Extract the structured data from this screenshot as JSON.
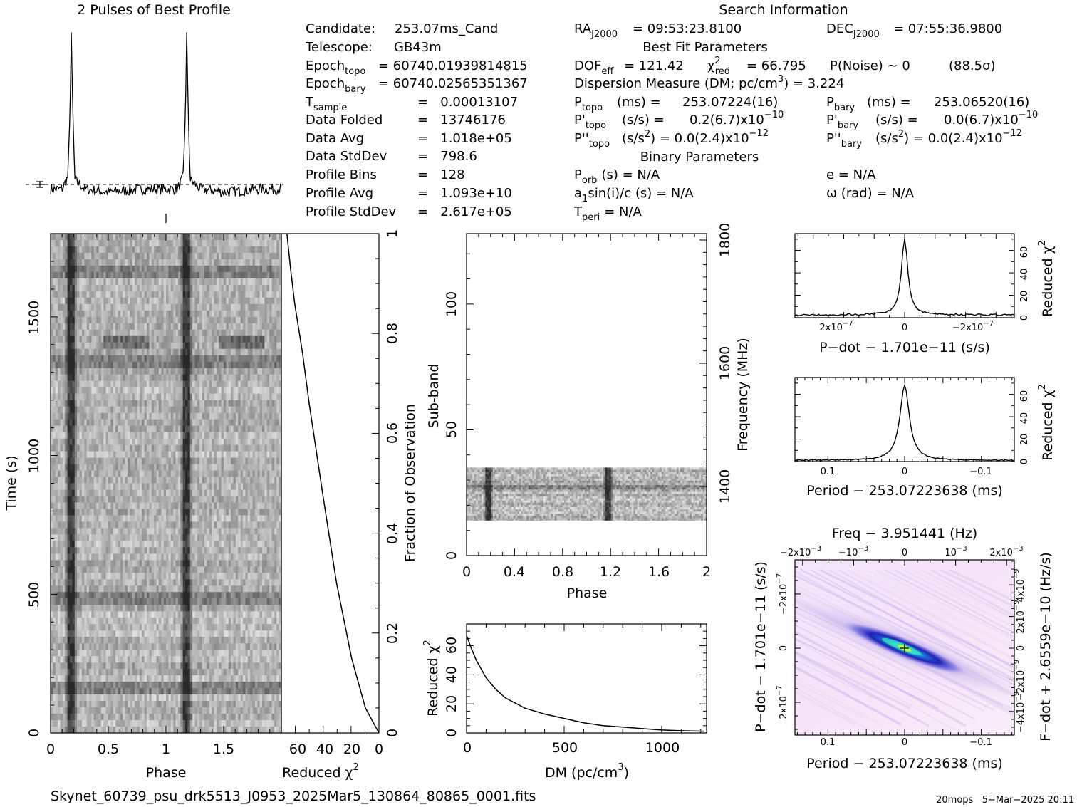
{
  "prof": {
    "title": "2 Pulses of Best Profile"
  },
  "search_title": "Search Information",
  "candidate": {
    "label": "Candidate:",
    "value": "253.07ms_Cand"
  },
  "telescope": {
    "label": "Telescope:",
    "value": "GB43m"
  },
  "epoch_topo": {
    "label": "Epoch",
    "sub": "topo",
    "value": "= 60740.01939814815"
  },
  "epoch_bary": {
    "label": "Epoch",
    "sub": "bary",
    "value": "= 60740.02565351367"
  },
  "left_rows": [
    {
      "label": "T",
      "sub": "sample",
      "value": "=   0.00013107"
    },
    {
      "label": "Data Folded",
      "value": "=   13746176"
    },
    {
      "label": "Data Avg",
      "value": "=   1.018e+05"
    },
    {
      "label": "Data StdDev",
      "value": "=   798.6"
    },
    {
      "label": "Profile Bins",
      "value": "=   128"
    },
    {
      "label": "Profile Avg",
      "value": "=   1.093e+10"
    },
    {
      "label": "Profile StdDev",
      "value": "=   2.617e+05"
    }
  ],
  "ra": {
    "label": "RA",
    "sub": "J2000",
    "value": "= 09:53:23.8100"
  },
  "dec": {
    "label": "DEC",
    "sub": "J2000",
    "value": "= 07:55:36.9800"
  },
  "best_fit_title": "Best Fit Parameters",
  "dof": {
    "label": "DOF",
    "sub": "eff",
    "value": "= 121.42"
  },
  "chi": {
    "sym": "χ",
    "sup": "2",
    "sub": "red",
    "value": "= 66.795"
  },
  "pnoise": {
    "text": "P(Noise) ~ 0",
    "sigma": "(88.5σ)"
  },
  "dm_line": {
    "text": "Dispersion Measure (DM; pc/cm",
    "sup": "3",
    "tail": ") = 3.224"
  },
  "ptopo": {
    "label": "P",
    "sub": "topo",
    "unit": "(ms) =",
    "value": "253.07224(16)"
  },
  "pbary": {
    "label": "P",
    "sub": "bary",
    "unit": "(ms) =",
    "value": "253.06520(16)"
  },
  "pdtopo": {
    "label": "P'",
    "sub": "topo",
    "unit": "(s/s) =",
    "value": "0.2(6.7)x10",
    "exp": "−10"
  },
  "pdbary": {
    "label": "P'",
    "sub": "bary",
    "unit": "(s/s) =",
    "value": "0.0(6.7)x10",
    "exp": "−10"
  },
  "pddtopo": {
    "label": "P''",
    "sub": "topo",
    "unit": "(s/s",
    "unit_sup": "2",
    "tail": ") = 0.0(2.4)x10",
    "exp": "−12"
  },
  "pddbary": {
    "label": "P''",
    "sub": "bary",
    "unit": "(s/s",
    "unit_sup": "2",
    "tail": ") = 0.0(2.4)x10",
    "exp": "−12"
  },
  "binary_title": "Binary Parameters",
  "porb": {
    "label": "P",
    "sub": "orb",
    "value": "(s) = N/A"
  },
  "asini": {
    "label": "a",
    "sub": "1",
    "value": "sin(i)/c (s) = N/A"
  },
  "tperi": {
    "label": "T",
    "sub": "peri",
    "value": "= N/A"
  },
  "ecc": {
    "text": "e = N/A"
  },
  "omega": {
    "text": "ω (rad) = N/A"
  },
  "tvp": {
    "xlabel": "Phase",
    "ylabel": "Time (s)",
    "xticks": [
      "0",
      "0.5",
      "1",
      "1.5"
    ],
    "yticks": [
      "0",
      "500",
      "1000",
      "1500"
    ]
  },
  "chivt": {
    "xlabel_main": "Reduced χ",
    "xlabel_sup": "2",
    "ylabel": "Fraction of Observation",
    "xticks": [
      "60",
      "40",
      "20",
      "0"
    ],
    "yticks": [
      "0",
      "0.2",
      "0.4",
      "0.6",
      "0.8",
      "1"
    ]
  },
  "sub": {
    "xlabel": "Phase",
    "ylabel": "Sub-band",
    "ylabel_right": "Frequency (MHz)",
    "xticks": [
      "0",
      "0.4",
      "0.8",
      "1.2",
      "1.6",
      "2"
    ],
    "yticks": [
      "0",
      "50",
      "100"
    ],
    "rticks": [
      "1400",
      "1600",
      "1800"
    ]
  },
  "dmp": {
    "xlabel_main": "DM (pc/cm",
    "xlabel_sup": "3",
    "xlabel_tail": ")",
    "ylabel_main": "Reduced χ",
    "ylabel_sup": "2",
    "xticks": [
      "0",
      "500",
      "1000"
    ],
    "yticks": [
      "0",
      "20",
      "40",
      "60"
    ]
  },
  "pdp": {
    "xlabel": "P−dot − 1.701e−11 (s/s)",
    "ylabel_main": "Reduced χ",
    "ylabel_sup": "2",
    "xticks": [
      "2x10",
      "0",
      "−2x10"
    ],
    "xtick_exp": "−7",
    "yticks": [
      "0",
      "20",
      "40",
      "60"
    ]
  },
  "pp": {
    "xlabel": "Period − 253.07223638 (ms)",
    "ylabel_main": "Reduced χ",
    "ylabel_sup": "2",
    "xticks": [
      "0.1",
      "0",
      "−0.1"
    ],
    "yticks": [
      "0",
      "20",
      "40",
      "60"
    ]
  },
  "ppd": {
    "top_label": "Freq − 3.951441 (Hz)",
    "xlabel": "Period − 253.07223638 (ms)",
    "ylabel": "P−dot − 1.701e−11 (s/s)",
    "ylabel_right": "F−dot + 2.6559e−10 (Hz/s)",
    "xticks": [
      "0.1",
      "0",
      "−0.1"
    ],
    "top_ticks": [
      "−2x10",
      "−10",
      "0",
      "10",
      "2x10"
    ],
    "top_exp": "−3",
    "yticks": [
      "2x10",
      "0",
      "−2x10"
    ],
    "ytick_exp": "−7",
    "rticks": [
      "−4x10",
      "−2x10",
      "0",
      "2x10",
      "4x10"
    ],
    "rtick_exp": "−9"
  },
  "footer": {
    "filename": "Skynet_60739_psu_drk5513_J0953_2025Mar5_130864_80865_0001.fits",
    "stamp": "20mops   5−Mar−2025 20:11"
  },
  "chart_data": [
    {
      "type": "line",
      "name": "profile",
      "x": [
        0,
        0.1,
        0.15,
        0.17,
        0.18,
        0.19,
        0.21,
        0.3,
        0.5,
        0.8,
        1.0,
        1.1,
        1.15,
        1.17,
        1.18,
        1.19,
        1.21,
        1.3,
        1.5,
        1.8,
        2.0
      ],
      "y": [
        0.0,
        0.0,
        0.08,
        0.5,
        1.0,
        0.55,
        0.06,
        0.0,
        -0.02,
        0.0,
        0.0,
        0.0,
        0.08,
        0.5,
        1.0,
        0.55,
        0.06,
        0.0,
        -0.02,
        0.0,
        0.0
      ],
      "title": "2 Pulses of Best Profile"
    },
    {
      "type": "heatmap",
      "name": "time-vs-phase",
      "xlabel": "Phase",
      "ylabel": "Time (s)",
      "xlim": [
        0,
        2
      ],
      "ylim": [
        0,
        1800
      ],
      "pulse_phases": [
        0.18,
        1.18
      ]
    },
    {
      "type": "line",
      "name": "reduced-chi2-vs-fraction",
      "x": [
        0,
        10,
        20,
        30,
        40,
        50,
        55,
        60,
        63,
        66
      ],
      "y": [
        0,
        0.05,
        0.15,
        0.3,
        0.48,
        0.66,
        0.76,
        0.86,
        0.93,
        1.0
      ],
      "xlabel": "Reduced χ2",
      "ylabel": "Fraction of Observation",
      "xlim": [
        70,
        0
      ],
      "ylim": [
        0,
        1
      ]
    },
    {
      "type": "heatmap",
      "name": "sub-band-vs-phase",
      "xlabel": "Phase",
      "ylabel": "Sub-band",
      "xlim": [
        0,
        2
      ],
      "ylim": [
        0,
        128
      ],
      "filled_subbands": [
        14,
        35
      ],
      "pulse_phases": [
        0.18,
        1.18
      ]
    },
    {
      "type": "line",
      "name": "chi2-vs-dm",
      "x": [
        0,
        25,
        50,
        100,
        150,
        200,
        300,
        400,
        500,
        600,
        700,
        800,
        900,
        1000,
        1100,
        1220
      ],
      "y": [
        67,
        58,
        50,
        38,
        30,
        24,
        17,
        13,
        10,
        7,
        5,
        4,
        3,
        2,
        1.5,
        1.2
      ],
      "xlabel": "DM (pc/cm3)",
      "ylabel": "Reduced χ2",
      "xlim": [
        0,
        1230
      ],
      "ylim": [
        0,
        75
      ]
    },
    {
      "type": "line",
      "name": "chi2-vs-pdot",
      "x": [
        3.5e-07,
        2e-07,
        1e-07,
        5e-08,
        2e-08,
        1e-08,
        0,
        -1e-08,
        -2e-08,
        -5e-08,
        -1e-07,
        -2e-07,
        -3.5e-07
      ],
      "y": [
        3,
        4,
        7,
        12,
        22,
        35,
        70,
        35,
        22,
        12,
        7,
        4,
        3
      ],
      "xlabel": "P−dot − 1.701e−11 (s/s)",
      "ylabel": "Reduced χ2",
      "ylim": [
        0,
        75
      ]
    },
    {
      "type": "line",
      "name": "chi2-vs-period",
      "x": [
        0.15,
        0.1,
        0.05,
        0.03,
        0.02,
        0.01,
        0.005,
        0,
        -0.005,
        -0.01,
        -0.02,
        -0.03,
        -0.05,
        -0.1,
        -0.15
      ],
      "y": [
        1,
        1.5,
        4,
        8,
        14,
        28,
        45,
        68,
        45,
        28,
        14,
        8,
        4,
        1.5,
        1
      ],
      "xlabel": "Period − 253.07223638 (ms)",
      "ylabel": "Reduced χ2",
      "ylim": [
        0,
        75
      ]
    },
    {
      "type": "heatmap",
      "name": "period-pdot",
      "xlabel": "Period − 253.07223638 (ms)",
      "ylabel": "P−dot − 1.701e−11 (s/s)",
      "xlim": [
        0.15,
        -0.15
      ],
      "ylim": [
        3e-07,
        -3e-07
      ],
      "peak": [
        0,
        0
      ]
    }
  ]
}
